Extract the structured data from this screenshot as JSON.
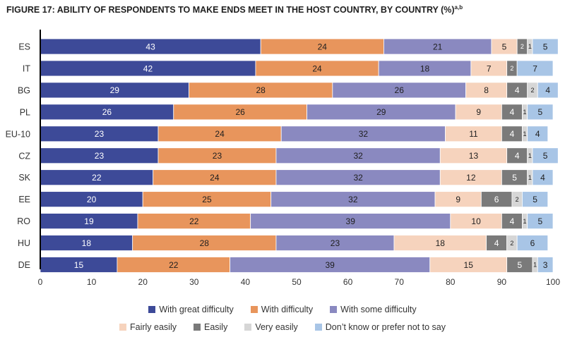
{
  "title": "FIGURE 17:   ABILITY OF RESPONDENTS TO MAKE ENDS MEET IN THE HOST COUNTRY, BY COUNTRY (%)",
  "title_superscript": "a,b",
  "chart_data": {
    "type": "bar",
    "orientation": "horizontal",
    "stacked": true,
    "title": "FIGURE 17:   ABILITY OF RESPONDENTS TO MAKE ENDS MEET IN THE HOST COUNTRY, BY COUNTRY (%)",
    "categories": [
      "ES",
      "IT",
      "BG",
      "PL",
      "EU-10",
      "CZ",
      "SK",
      "EE",
      "RO",
      "HU",
      "DE"
    ],
    "series": [
      {
        "name": "With great difficulty",
        "color": "#3d4a98",
        "label_color": "#ffffff",
        "values": [
          43,
          42,
          29,
          26,
          23,
          23,
          22,
          20,
          19,
          18,
          15
        ]
      },
      {
        "name": "With difficulty",
        "color": "#e8955c",
        "label_color": "#1f1f1f",
        "values": [
          24,
          24,
          28,
          26,
          24,
          23,
          24,
          25,
          22,
          28,
          22
        ]
      },
      {
        "name": "With some difficulty",
        "color": "#8a89c0",
        "label_color": "#1f1f1f",
        "values": [
          21,
          18,
          26,
          29,
          32,
          32,
          32,
          32,
          39,
          23,
          39
        ]
      },
      {
        "name": "Fairly easily",
        "color": "#f6d3bd",
        "label_color": "#1f1f1f",
        "values": [
          5,
          7,
          8,
          9,
          11,
          13,
          12,
          9,
          10,
          18,
          15
        ]
      },
      {
        "name": "Easily",
        "color": "#7a7a7a",
        "label_color": "#ffffff",
        "values": [
          2,
          2,
          4,
          4,
          4,
          4,
          5,
          6,
          4,
          4,
          5
        ]
      },
      {
        "name": "Very easily",
        "color": "#d6d6d6",
        "label_color": "#1f1f1f",
        "values": [
          1,
          0,
          2,
          1,
          1,
          1,
          1,
          2,
          1,
          2,
          1
        ]
      },
      {
        "name": "Don’t know or prefer not to say",
        "color": "#a8c5e6",
        "label_color": "#1f1f1f",
        "values": [
          5,
          7,
          4,
          5,
          4,
          5,
          4,
          5,
          5,
          6,
          3
        ]
      }
    ],
    "xlim": [
      0,
      100
    ],
    "xticks": [
      0,
      10,
      20,
      30,
      40,
      50,
      60,
      70,
      80,
      90,
      100
    ],
    "grid": false,
    "legend_position": "bottom"
  }
}
